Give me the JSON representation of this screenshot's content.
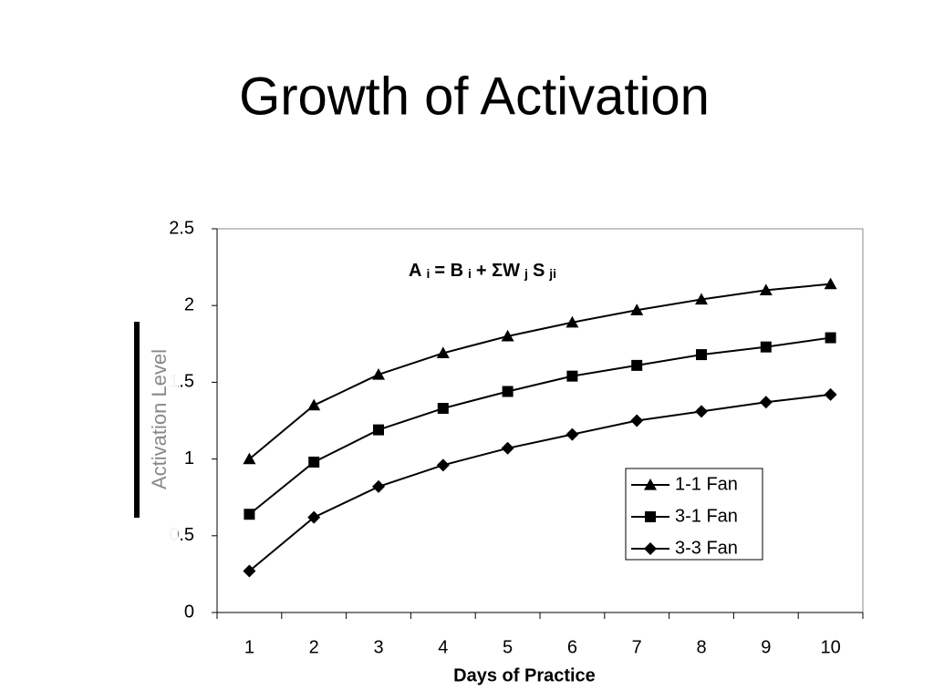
{
  "title": "Growth of Activation",
  "chart_data": {
    "type": "line",
    "xlabel": "Days of Practice",
    "ylabel": "Activation Level",
    "annotation": [
      "A",
      "i",
      "= B",
      "i",
      "+ ΣW",
      "j",
      "S",
      "ji"
    ],
    "categories": [
      "1",
      "2",
      "3",
      "4",
      "5",
      "6",
      "7",
      "8",
      "9",
      "10"
    ],
    "ylim": [
      0,
      2.5
    ],
    "yticks": [
      0,
      0.5,
      1,
      1.5,
      2,
      2.5
    ],
    "series": [
      {
        "name": "1-1 Fan",
        "color": "#000000",
        "marker": "triangle",
        "values": [
          1.0,
          1.35,
          1.55,
          1.69,
          1.8,
          1.89,
          1.97,
          2.04,
          2.1,
          2.14
        ]
      },
      {
        "name": "3-1 Fan",
        "color": "#000000",
        "marker": "square",
        "values": [
          0.64,
          0.98,
          1.19,
          1.33,
          1.44,
          1.54,
          1.61,
          1.68,
          1.73,
          1.79
        ]
      },
      {
        "name": "3-3 Fan",
        "color": "#000000",
        "marker": "diamond",
        "values": [
          0.27,
          0.62,
          0.82,
          0.96,
          1.07,
          1.16,
          1.25,
          1.31,
          1.37,
          1.42
        ]
      }
    ]
  }
}
